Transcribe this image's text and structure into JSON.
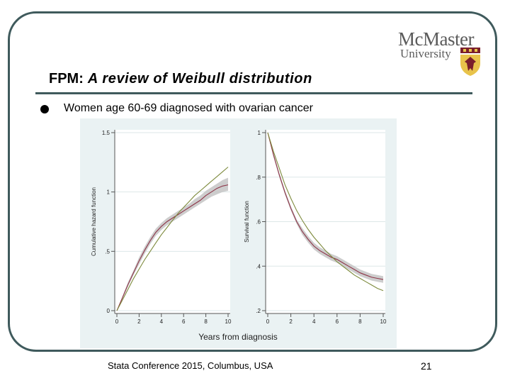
{
  "slide": {
    "logo_name": "McMaster",
    "logo_sub": "University",
    "title_prefix": "FPM:",
    "title_italic": "A review of Weibull distribution",
    "bullet": "Women age 60-69 diagnosed with ovarian cancer",
    "footer": "Stata Conference 2015, Columbus, USA",
    "page_number": "21"
  },
  "colors": {
    "frame": "#3f5a5c",
    "ci_band": "#c4c4c4",
    "fpm_line": "#8e3548",
    "weibull_line": "#7d8a3c",
    "plot_bg": "#eaf2f3"
  },
  "chart_data": [
    {
      "type": "line",
      "ylabel": "Cumulative hazard function",
      "xlim": [
        0,
        10
      ],
      "ylim": [
        0,
        1.5
      ],
      "x_ticks": [
        0,
        2,
        4,
        6,
        8,
        10
      ],
      "y_ticks": [
        0,
        0.5,
        1,
        1.5
      ],
      "y_tick_labels": [
        "0",
        ".5",
        "1",
        "1.5"
      ],
      "grid": true,
      "x": [
        0,
        0.5,
        1,
        1.5,
        2,
        2.5,
        3,
        3.5,
        4,
        4.5,
        5,
        5.5,
        6,
        6.5,
        7,
        7.5,
        8,
        8.5,
        9,
        9.5,
        10
      ],
      "series": [
        {
          "values": [
            0,
            0.11,
            0.22,
            0.32,
            0.42,
            0.51,
            0.59,
            0.66,
            0.71,
            0.75,
            0.78,
            0.81,
            0.84,
            0.87,
            0.9,
            0.93,
            0.97,
            1.0,
            1.03,
            1.05,
            1.06
          ]
        },
        {
          "values": [
            0,
            0.09,
            0.18,
            0.27,
            0.35,
            0.43,
            0.5,
            0.57,
            0.64,
            0.7,
            0.76,
            0.82,
            0.87,
            0.92,
            0.97,
            1.01,
            1.05,
            1.09,
            1.13,
            1.17,
            1.21
          ]
        }
      ],
      "ci_lower": [
        0,
        0.1,
        0.2,
        0.3,
        0.39,
        0.48,
        0.56,
        0.63,
        0.68,
        0.72,
        0.75,
        0.78,
        0.81,
        0.84,
        0.87,
        0.9,
        0.93,
        0.96,
        0.98,
        1.0,
        1.01
      ],
      "ci_upper": [
        0,
        0.12,
        0.24,
        0.34,
        0.45,
        0.54,
        0.62,
        0.69,
        0.74,
        0.78,
        0.81,
        0.84,
        0.87,
        0.9,
        0.94,
        0.97,
        1.01,
        1.04,
        1.07,
        1.1,
        1.12
      ]
    },
    {
      "type": "line",
      "ylabel": "Survival function",
      "xlim": [
        0,
        10
      ],
      "ylim": [
        0.2,
        1
      ],
      "x_ticks": [
        0,
        2,
        4,
        6,
        8,
        10
      ],
      "y_ticks": [
        0.2,
        0.4,
        0.6,
        0.8,
        1
      ],
      "y_tick_labels": [
        ".2",
        ".4",
        ".6",
        ".8",
        "1"
      ],
      "grid": true,
      "x": [
        0,
        0.5,
        1,
        1.5,
        2,
        2.5,
        3,
        3.5,
        4,
        4.5,
        5,
        5.5,
        6,
        6.5,
        7,
        7.5,
        8,
        8.5,
        9,
        9.5,
        10
      ],
      "series": [
        {
          "values": [
            1.0,
            0.9,
            0.81,
            0.73,
            0.66,
            0.6,
            0.555,
            0.52,
            0.49,
            0.47,
            0.455,
            0.44,
            0.43,
            0.415,
            0.4,
            0.385,
            0.37,
            0.36,
            0.35,
            0.345,
            0.34
          ]
        },
        {
          "values": [
            1.0,
            0.915,
            0.84,
            0.765,
            0.705,
            0.65,
            0.605,
            0.565,
            0.53,
            0.5,
            0.47,
            0.445,
            0.42,
            0.4,
            0.38,
            0.36,
            0.345,
            0.33,
            0.315,
            0.3,
            0.29
          ]
        }
      ],
      "ci_lower": [
        1.0,
        0.89,
        0.8,
        0.72,
        0.65,
        0.59,
        0.54,
        0.505,
        0.475,
        0.455,
        0.44,
        0.425,
        0.415,
        0.4,
        0.385,
        0.37,
        0.355,
        0.345,
        0.335,
        0.33,
        0.325
      ],
      "ci_upper": [
        1.0,
        0.91,
        0.82,
        0.74,
        0.67,
        0.61,
        0.57,
        0.535,
        0.505,
        0.485,
        0.47,
        0.455,
        0.445,
        0.43,
        0.415,
        0.4,
        0.385,
        0.375,
        0.365,
        0.36,
        0.355
      ]
    }
  ],
  "xlabel": "Years from diagnosis"
}
